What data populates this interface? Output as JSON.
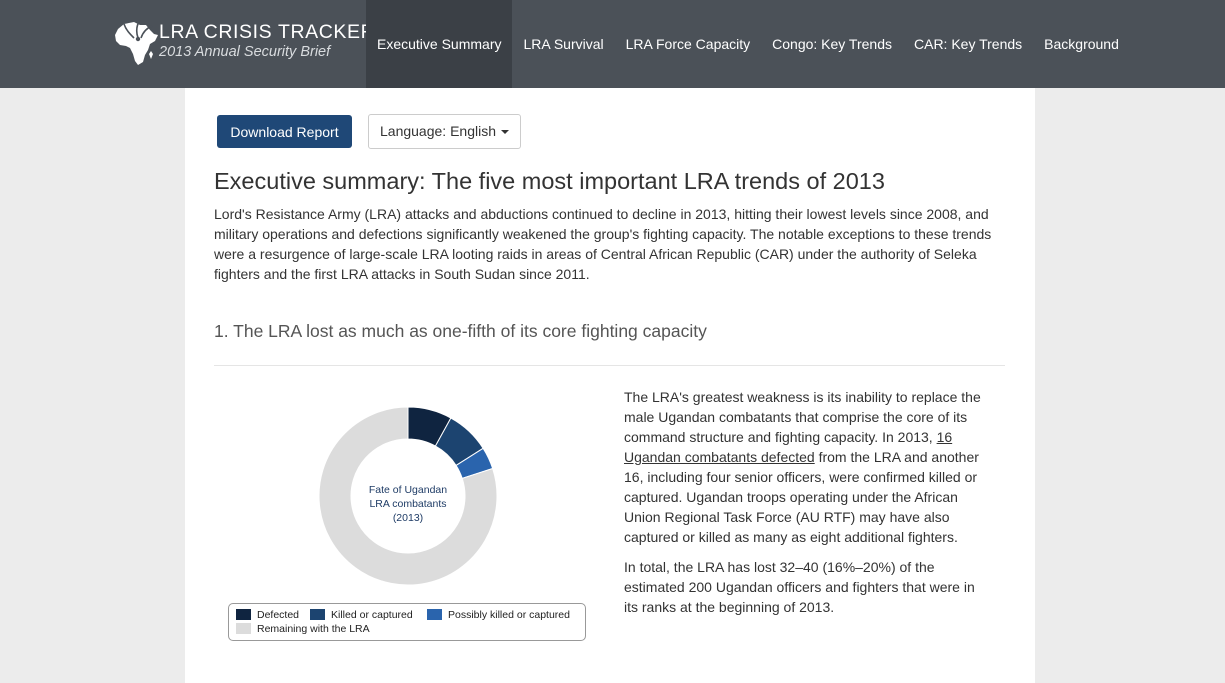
{
  "brand": {
    "title": "LRA CRISIS TRACKER",
    "subtitle": "2013 Annual Security Brief"
  },
  "nav": {
    "items": [
      {
        "label": "Executive Summary",
        "active": true
      },
      {
        "label": "LRA Survival"
      },
      {
        "label": "LRA Force Capacity"
      },
      {
        "label": "Congo: Key Trends"
      },
      {
        "label": "CAR: Key Trends"
      },
      {
        "label": "Background"
      }
    ]
  },
  "toolbar": {
    "download_label": "Download Report",
    "language_label": "Language: English"
  },
  "page": {
    "title": "Executive summary: The five most important LRA trends of 2013",
    "intro": "Lord's Resistance Army (LRA) attacks and abductions continued to decline in 2013, hitting their lowest levels since 2008, and military operations and defections significantly weakened the group's fighting capacity. The notable exceptions to these trends were a resurgence of large-scale LRA looting raids in areas of Central African Republic (CAR) under the authority of Seleka fighters and the first LRA attacks in South Sudan since 2011.",
    "section1_title": "1. The LRA lost as much as one-fifth of its core fighting capacity"
  },
  "side_text": {
    "p1_before": "The LRA's greatest weakness is its inability to replace the male Ugandan combatants that comprise the core of its command structure and fighting capacity. In 2013, ",
    "p1_link": "16 Ugandan combatants defected",
    "p1_after": " from the LRA and another 16, including four senior officers, were confirmed killed or captured. Ugandan troops operating under the African Union Regional Task Force (AU RTF) may have also captured or killed as many as eight additional fighters.",
    "p2": "In total, the LRA has lost 32–40 (16%–20%) of the estimated 200 Ugandan officers and fighters that were in its ranks at the beginning of 2013."
  },
  "chart_data": {
    "type": "pie",
    "title_lines": [
      "Fate of Ugandan",
      "LRA combatants",
      "(2013)"
    ],
    "categories": [
      "Defected",
      "Killed or captured",
      "Possibly killed or captured",
      "Remaining with the LRA"
    ],
    "values": [
      16,
      16,
      8,
      160
    ],
    "colors": [
      "#0f2440",
      "#1c4470",
      "#2a64ad",
      "#dcdcdc"
    ],
    "legend_position": "bottom"
  }
}
